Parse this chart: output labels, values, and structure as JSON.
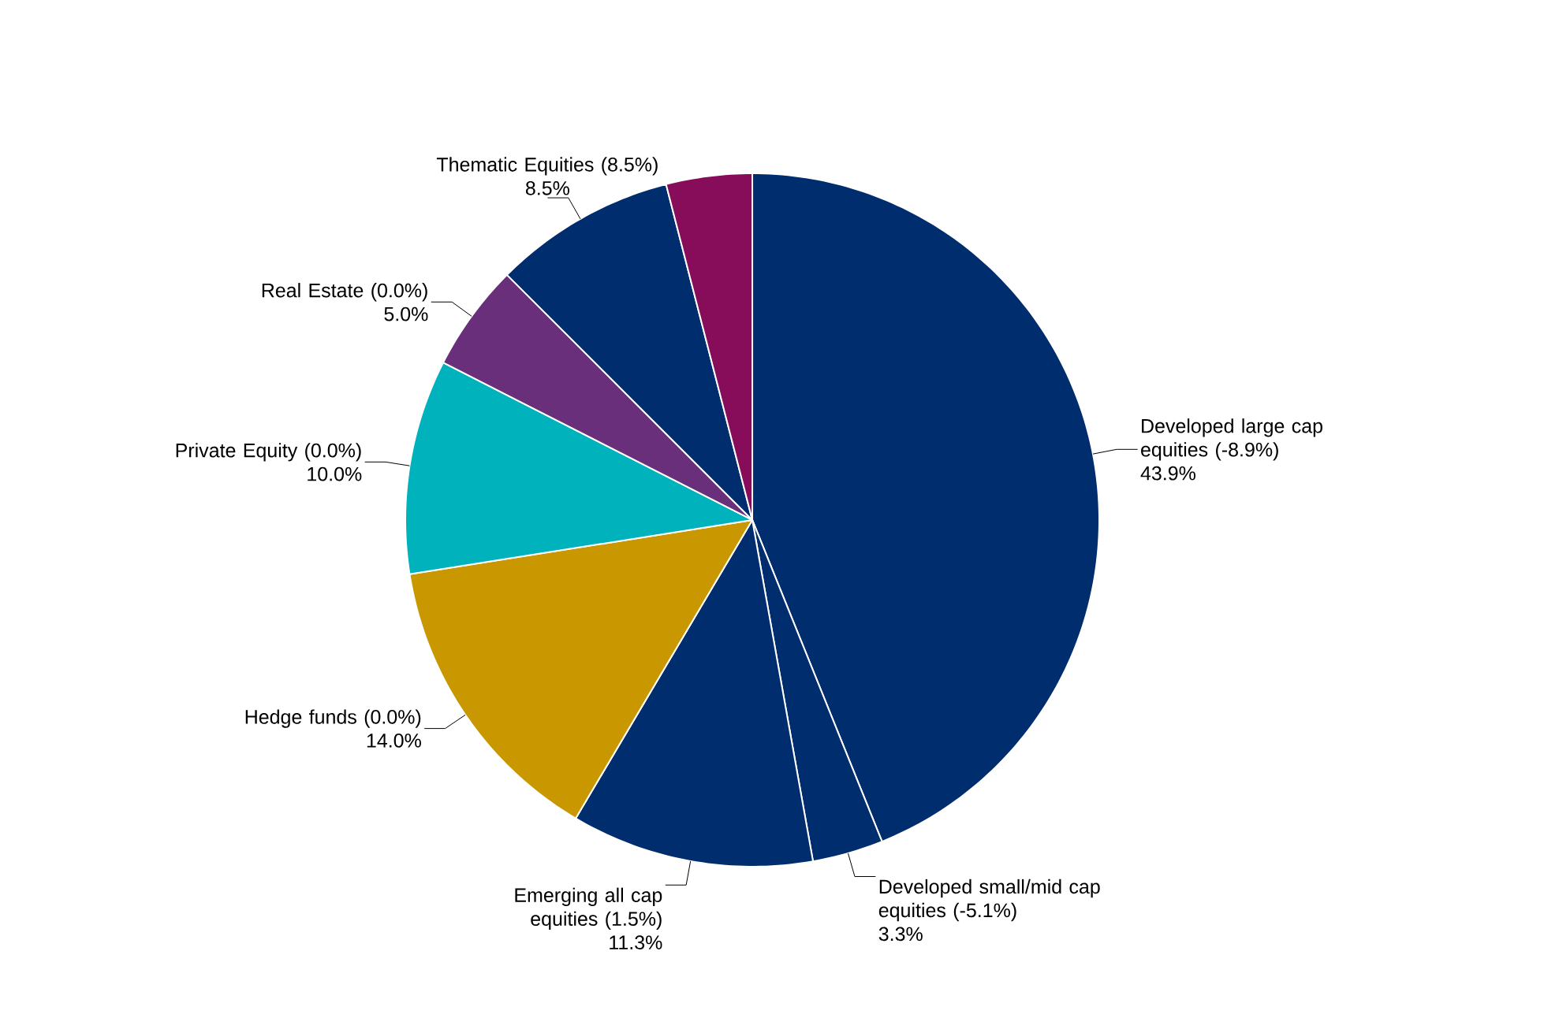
{
  "chart_data": {
    "type": "pie",
    "categories": [
      "Developed large cap equities (-8.9%)",
      "Developed small/mid cap equities (-5.1%)",
      "Emerging all cap equities (1.5%)",
      "Hedge funds (0.0%)",
      "Private Equity (0.0%)",
      "Real Estate (0.0%)",
      "Thematic Equities (8.5%)",
      null
    ],
    "values": [
      43.9,
      3.3,
      11.3,
      14.0,
      10.0,
      5.0,
      8.5,
      4.0
    ],
    "colors": [
      "#002d6e",
      "#002d6e",
      "#002d6e",
      "#c99700",
      "#00b2bb",
      "#6a2f7a",
      "#002d6e",
      "#870c59"
    ],
    "value_labels": [
      "43.9%",
      "3.3%",
      "11.3%",
      "14.0%",
      "10.0%",
      "5.0%",
      "8.5%",
      null
    ]
  }
}
